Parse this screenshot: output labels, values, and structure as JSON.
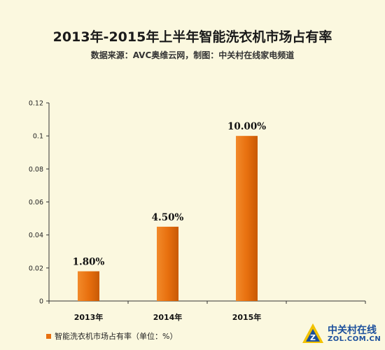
{
  "chart_data": {
    "type": "bar",
    "title": "2013年-2015年上半年智能洗衣机市场占有率",
    "subtitle": "数据来源：AVC奥维云网，制图：中关村在线家电频道",
    "categories": [
      "2013年",
      "2014年",
      "2015年",
      ""
    ],
    "values": [
      0.018,
      0.045,
      0.1,
      null
    ],
    "data_labels": [
      "1.80%",
      "4.50%",
      "10.00%",
      ""
    ],
    "series": [
      {
        "name": "智能洗衣机市场占有率（单位：%）",
        "values": [
          0.018,
          0.045,
          0.1,
          null
        ]
      }
    ],
    "ylim": [
      0,
      0.12
    ],
    "yticks": [
      "0",
      "0.02",
      "0.04",
      "0.06",
      "0.08",
      "0.1",
      "0.12"
    ],
    "ytick_values": [
      0,
      0.02,
      0.04,
      0.06,
      0.08,
      0.1,
      0.12
    ],
    "grid": false,
    "legend_position": "bottom-left",
    "bar_color": "#e8700f",
    "background_color": "#fbf8df"
  },
  "watermark": {
    "line1": "中关村在线",
    "line2": "ZOL.COM.CN"
  }
}
